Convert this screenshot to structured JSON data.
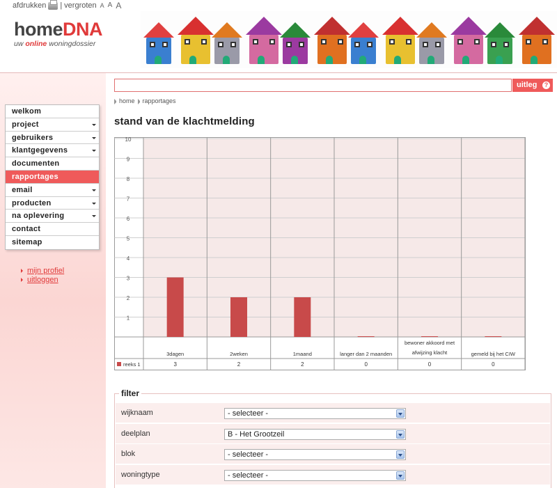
{
  "util": {
    "print_label": "afdrukken",
    "separator": "|",
    "enlarge_label": "vergroten",
    "sizes": [
      "A",
      "A",
      "A"
    ]
  },
  "logo": {
    "home": "home",
    "dna": "DNA",
    "tag_pre": "uw",
    "tag_online": "online",
    "tag_post": "woningdossier"
  },
  "nav": [
    {
      "label": "welkom",
      "arrow": false
    },
    {
      "label": "project",
      "arrow": true
    },
    {
      "label": "gebruikers",
      "arrow": true
    },
    {
      "label": "klantgegevens",
      "arrow": true
    },
    {
      "label": "documenten",
      "arrow": false
    },
    {
      "label": "rapportages",
      "arrow": false,
      "active": true
    },
    {
      "label": "email",
      "arrow": true
    },
    {
      "label": "producten",
      "arrow": true
    },
    {
      "label": "na oplevering",
      "arrow": true
    },
    {
      "label": "contact",
      "arrow": false
    },
    {
      "label": "sitemap",
      "arrow": false
    }
  ],
  "sublinks": [
    "mijn profiel",
    "uitloggen"
  ],
  "search": {
    "value": ""
  },
  "uitleg": {
    "label": "uitleg",
    "icon": "?"
  },
  "breadcrumb": [
    "home",
    "rapportages"
  ],
  "page_title": "stand van de klachtmelding",
  "chart_data": {
    "type": "bar",
    "categories": [
      "3dagen",
      "2weken",
      "1maand",
      "langer dan 2 maanden",
      "bewoner akkoord met afwijzing klacht",
      "gemeld bij het CIW"
    ],
    "series": [
      {
        "name": "reeks 1",
        "values": [
          3,
          2,
          2,
          0,
          0,
          0
        ]
      }
    ],
    "ylim": [
      0,
      10
    ],
    "yticks": [
      1,
      2,
      3,
      4,
      5,
      6,
      7,
      8,
      9,
      10
    ],
    "colors": {
      "bar": "#c84a4a",
      "plot_bg": "#f6e9e8",
      "grid": "#cfcfcf"
    }
  },
  "filter": {
    "title": "filter",
    "rows": [
      {
        "label": "wijknaam",
        "value": "- selecteer -"
      },
      {
        "label": "deelplan",
        "value": "B - Het Grootzeil"
      },
      {
        "label": "blok",
        "value": "- selecteer -"
      },
      {
        "label": "woningtype",
        "value": "- selecteer -"
      }
    ]
  },
  "colors": {
    "accent": "#ef5a5a",
    "brand_red": "#e03a3a"
  }
}
